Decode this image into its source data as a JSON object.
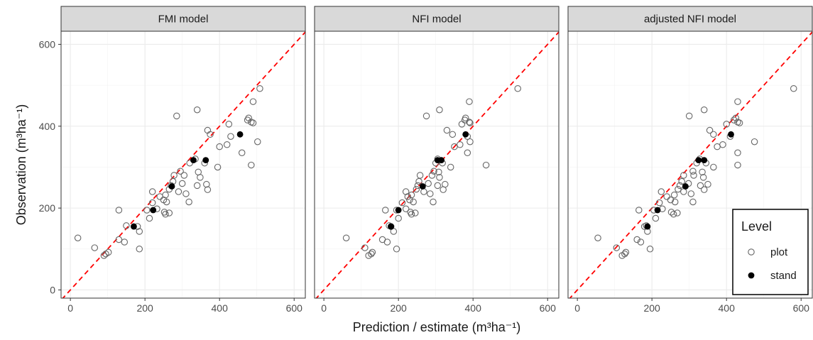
{
  "chart_data": {
    "type": "scatter",
    "x_axis_title": "Prediction / estimate (m³ha⁻¹)",
    "y_axis_title": "Observation (m³ha⁻¹)",
    "xlim": [
      -25,
      630
    ],
    "ylim": [
      -20,
      632
    ],
    "x_ticks": [
      0,
      200,
      400,
      600
    ],
    "y_ticks": [
      0,
      200,
      400,
      600
    ],
    "tick_labels": {
      "0": "0",
      "200": "200",
      "400": "400",
      "600": "600"
    },
    "grid": true,
    "reference_line": {
      "type": "identity",
      "color": "#ff0000",
      "dash": "dashed"
    },
    "legend": {
      "title": "Level",
      "position": "bottom-right",
      "entries": [
        {
          "label": "plot",
          "marker": "open-circle",
          "color": "#666666"
        },
        {
          "label": "stand",
          "marker": "filled-circle",
          "color": "#000000"
        }
      ]
    },
    "panels": [
      {
        "title": "FMI model",
        "plot": [
          [
            20,
            127
          ],
          [
            65,
            103
          ],
          [
            90,
            84
          ],
          [
            95,
            88
          ],
          [
            102,
            92
          ],
          [
            130,
            123
          ],
          [
            130,
            195
          ],
          [
            145,
            117
          ],
          [
            150,
            157
          ],
          [
            180,
            155
          ],
          [
            185,
            143
          ],
          [
            185,
            100
          ],
          [
            205,
            195
          ],
          [
            212,
            175
          ],
          [
            220,
            213
          ],
          [
            220,
            240
          ],
          [
            232,
            198
          ],
          [
            240,
            228
          ],
          [
            250,
            220
          ],
          [
            252,
            190
          ],
          [
            255,
            185
          ],
          [
            255,
            232
          ],
          [
            258,
            215
          ],
          [
            265,
            188
          ],
          [
            265,
            246
          ],
          [
            270,
            255
          ],
          [
            275,
            265
          ],
          [
            278,
            280
          ],
          [
            285,
            425
          ],
          [
            290,
            240
          ],
          [
            295,
            290
          ],
          [
            300,
            260
          ],
          [
            305,
            280
          ],
          [
            310,
            235
          ],
          [
            318,
            215
          ],
          [
            320,
            310
          ],
          [
            335,
            320
          ],
          [
            340,
            440
          ],
          [
            340,
            255
          ],
          [
            343,
            288
          ],
          [
            348,
            275
          ],
          [
            360,
            310
          ],
          [
            365,
            258
          ],
          [
            368,
            390
          ],
          [
            368,
            245
          ],
          [
            375,
            380
          ],
          [
            395,
            300
          ],
          [
            400,
            350
          ],
          [
            420,
            355
          ],
          [
            425,
            405
          ],
          [
            430,
            375
          ],
          [
            460,
            335
          ],
          [
            475,
            415
          ],
          [
            478,
            420
          ],
          [
            485,
            410
          ],
          [
            485,
            305
          ],
          [
            490,
            408
          ],
          [
            490,
            460
          ],
          [
            502,
            362
          ],
          [
            508,
            492
          ]
        ],
        "stand": [
          [
            170,
            155
          ],
          [
            222,
            195
          ],
          [
            272,
            253
          ],
          [
            330,
            317
          ],
          [
            363,
            317
          ],
          [
            455,
            380
          ]
        ]
      },
      {
        "title": "NFI model",
        "plot": [
          [
            60,
            127
          ],
          [
            110,
            103
          ],
          [
            120,
            84
          ],
          [
            127,
            88
          ],
          [
            130,
            92
          ],
          [
            157,
            123
          ],
          [
            165,
            195
          ],
          [
            170,
            117
          ],
          [
            175,
            157
          ],
          [
            180,
            155
          ],
          [
            187,
            143
          ],
          [
            195,
            100
          ],
          [
            195,
            195
          ],
          [
            200,
            175
          ],
          [
            210,
            213
          ],
          [
            220,
            240
          ],
          [
            220,
            198
          ],
          [
            225,
            228
          ],
          [
            230,
            220
          ],
          [
            232,
            190
          ],
          [
            235,
            185
          ],
          [
            235,
            232
          ],
          [
            240,
            215
          ],
          [
            245,
            188
          ],
          [
            248,
            246
          ],
          [
            252,
            255
          ],
          [
            255,
            265
          ],
          [
            258,
            280
          ],
          [
            275,
            425
          ],
          [
            268,
            240
          ],
          [
            295,
            290
          ],
          [
            280,
            260
          ],
          [
            290,
            280
          ],
          [
            285,
            235
          ],
          [
            293,
            215
          ],
          [
            300,
            310
          ],
          [
            305,
            320
          ],
          [
            310,
            440
          ],
          [
            305,
            255
          ],
          [
            308,
            288
          ],
          [
            310,
            275
          ],
          [
            318,
            310
          ],
          [
            325,
            258
          ],
          [
            330,
            390
          ],
          [
            320,
            245
          ],
          [
            345,
            380
          ],
          [
            340,
            300
          ],
          [
            350,
            350
          ],
          [
            365,
            355
          ],
          [
            370,
            405
          ],
          [
            385,
            375
          ],
          [
            385,
            335
          ],
          [
            378,
            415
          ],
          [
            380,
            420
          ],
          [
            390,
            410
          ],
          [
            435,
            305
          ],
          [
            392,
            408
          ],
          [
            390,
            460
          ],
          [
            392,
            362
          ],
          [
            520,
            492
          ]
        ],
        "stand": [
          [
            180,
            155
          ],
          [
            200,
            195
          ],
          [
            265,
            253
          ],
          [
            305,
            317
          ],
          [
            315,
            317
          ],
          [
            380,
            380
          ]
        ]
      },
      {
        "title": "adjusted NFI model",
        "plot": [
          [
            55,
            127
          ],
          [
            105,
            103
          ],
          [
            120,
            84
          ],
          [
            127,
            88
          ],
          [
            130,
            92
          ],
          [
            160,
            123
          ],
          [
            165,
            195
          ],
          [
            170,
            117
          ],
          [
            185,
            157
          ],
          [
            180,
            155
          ],
          [
            188,
            143
          ],
          [
            195,
            100
          ],
          [
            205,
            195
          ],
          [
            210,
            175
          ],
          [
            220,
            213
          ],
          [
            225,
            240
          ],
          [
            228,
            198
          ],
          [
            240,
            228
          ],
          [
            250,
            220
          ],
          [
            252,
            190
          ],
          [
            258,
            185
          ],
          [
            260,
            232
          ],
          [
            262,
            215
          ],
          [
            268,
            188
          ],
          [
            270,
            246
          ],
          [
            275,
            255
          ],
          [
            280,
            265
          ],
          [
            285,
            280
          ],
          [
            300,
            425
          ],
          [
            285,
            240
          ],
          [
            310,
            290
          ],
          [
            298,
            260
          ],
          [
            312,
            280
          ],
          [
            305,
            235
          ],
          [
            310,
            215
          ],
          [
            320,
            310
          ],
          [
            328,
            320
          ],
          [
            340,
            440
          ],
          [
            330,
            255
          ],
          [
            335,
            288
          ],
          [
            338,
            275
          ],
          [
            345,
            310
          ],
          [
            350,
            258
          ],
          [
            355,
            390
          ],
          [
            340,
            245
          ],
          [
            365,
            380
          ],
          [
            365,
            300
          ],
          [
            375,
            350
          ],
          [
            390,
            355
          ],
          [
            400,
            405
          ],
          [
            410,
            375
          ],
          [
            430,
            335
          ],
          [
            420,
            415
          ],
          [
            425,
            420
          ],
          [
            430,
            410
          ],
          [
            430,
            305
          ],
          [
            435,
            408
          ],
          [
            430,
            460
          ],
          [
            475,
            362
          ],
          [
            580,
            492
          ]
        ],
        "stand": [
          [
            188,
            155
          ],
          [
            215,
            195
          ],
          [
            290,
            253
          ],
          [
            325,
            317
          ],
          [
            340,
            317
          ],
          [
            412,
            380
          ]
        ]
      }
    ]
  }
}
